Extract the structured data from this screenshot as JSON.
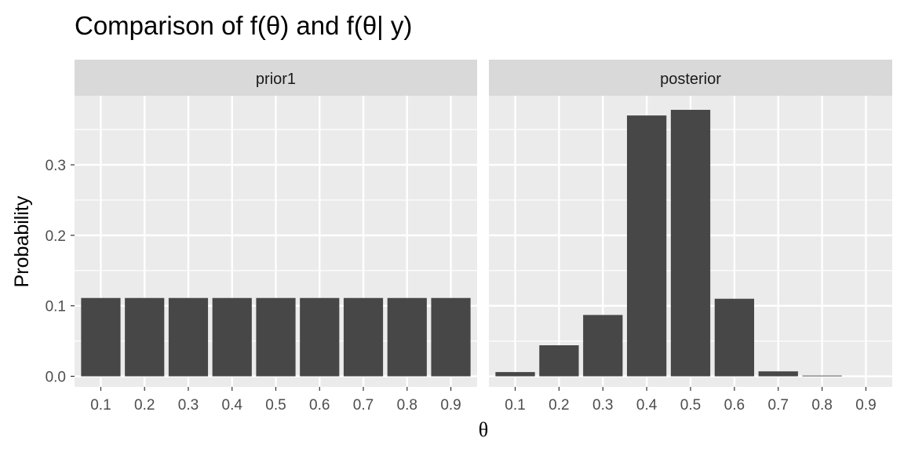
{
  "chart_data": {
    "type": "bar",
    "title": "Comparison of f(θ) and f(θ| y)",
    "xlabel": "θ",
    "ylabel": "Probability",
    "categories": [
      "0.1",
      "0.2",
      "0.3",
      "0.4",
      "0.5",
      "0.6",
      "0.7",
      "0.8",
      "0.9"
    ],
    "yticks": [
      "0.0",
      "0.1",
      "0.2",
      "0.3"
    ],
    "ylim": [
      -0.015,
      0.398
    ],
    "bar_color": "#474747",
    "panel_background": "#ebebeb",
    "strip_background": "#d9d9d9",
    "grid": true,
    "facets": [
      {
        "label": "prior1",
        "values": [
          0.1111,
          0.1111,
          0.1111,
          0.1111,
          0.1111,
          0.1111,
          0.1111,
          0.1111,
          0.1111
        ]
      },
      {
        "label": "posterior",
        "values": [
          0.006,
          0.044,
          0.087,
          0.37,
          0.378,
          0.11,
          0.007,
          0.001,
          0.0
        ]
      }
    ]
  }
}
